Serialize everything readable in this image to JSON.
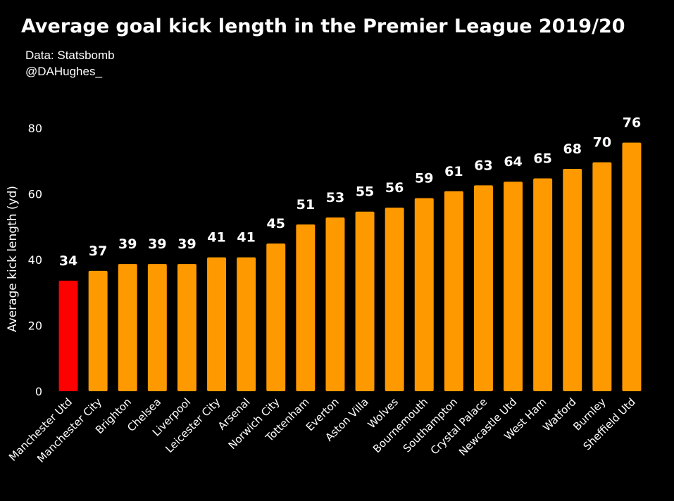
{
  "header": {
    "title": "Average goal kick length in the Premier League 2019/20",
    "source": "Data: Statsbomb",
    "credit": "@DAHughes_"
  },
  "chart_data": {
    "type": "bar",
    "title": "Average goal kick length in the Premier League 2019/20",
    "xlabel": "",
    "ylabel": "Average kick length (yd)",
    "ylim": [
      0,
      80
    ],
    "yticks": [
      0,
      20,
      40,
      60,
      80
    ],
    "grid": false,
    "categories": [
      "Manchester Utd",
      "Manchester City",
      "Brighton",
      "Chelsea",
      "Liverpool",
      "Leicester City",
      "Arsenal",
      "Norwich City",
      "Tottenham",
      "Everton",
      "Aston Villa",
      "Wolves",
      "Bournemouth",
      "Southampton",
      "Crystal Palace",
      "Newcastle Utd",
      "West Ham",
      "Watford",
      "Burnley",
      "Sheffield Utd"
    ],
    "values": [
      33.6,
      36.6,
      38.7,
      38.7,
      38.7,
      40.7,
      40.7,
      44.9,
      50.7,
      52.8,
      54.6,
      55.8,
      58.7,
      60.8,
      62.6,
      63.7,
      64.7,
      67.6,
      69.6,
      75.6
    ],
    "labels": [
      "34",
      "37",
      "39",
      "39",
      "39",
      "41",
      "41",
      "45",
      "51",
      "53",
      "55",
      "56",
      "59",
      "61",
      "63",
      "64",
      "65",
      "68",
      "70",
      "76"
    ],
    "colors": {
      "highlight": "#ff0000",
      "bar": "#ff9900",
      "highlight_category": "Manchester Utd"
    }
  }
}
